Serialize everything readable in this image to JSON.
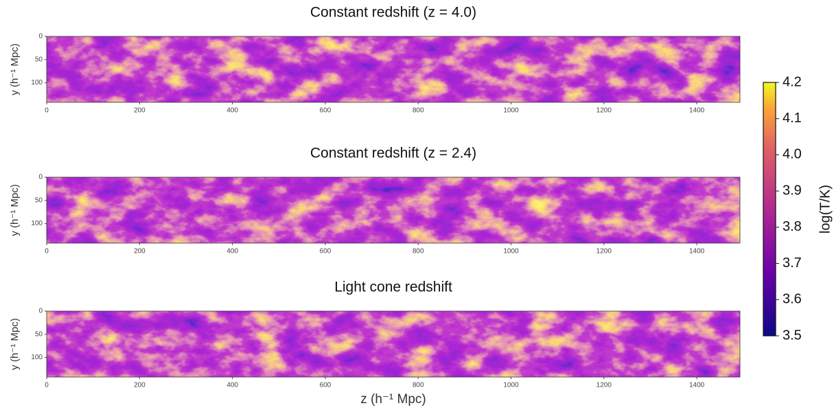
{
  "chart_data": [
    {
      "type": "image",
      "title": "Constant redshift (z = 4.0)",
      "ylabel": "y (h⁻¹ Mpc)",
      "xlim": [
        0,
        1493
      ],
      "xticks": [
        0,
        200,
        400,
        600,
        800,
        1000,
        1200,
        1400
      ],
      "ylim": [
        142,
        0
      ],
      "yticks": [
        0,
        50,
        100
      ],
      "colormap": "plasma"
    },
    {
      "type": "image",
      "title": "Constant redshift (z = 2.4)",
      "ylabel": "y (h⁻¹ Mpc)",
      "xlim": [
        0,
        1493
      ],
      "xticks": [
        0,
        200,
        400,
        600,
        800,
        1000,
        1200,
        1400
      ],
      "ylim": [
        142,
        0
      ],
      "yticks": [
        0,
        50,
        100
      ],
      "colormap": "plasma"
    },
    {
      "type": "image",
      "title": "Light cone redshift",
      "ylabel": "y (h⁻¹ Mpc)",
      "xlabel": "z (h⁻¹ Mpc)",
      "xlim": [
        0,
        1493
      ],
      "xticks": [
        0,
        200,
        400,
        600,
        800,
        1000,
        1200,
        1400
      ],
      "ylim": [
        142,
        0
      ],
      "yticks": [
        0,
        50,
        100
      ],
      "colormap": "plasma"
    },
    {
      "type": "colorbar",
      "ylabel": "log(T/K)",
      "colormap": "plasma",
      "ylim": [
        3.5,
        4.2
      ],
      "yticks": [
        3.5,
        3.6,
        3.7,
        3.8,
        3.9,
        {
          "value": 4,
          "label": "4.0"
        },
        4.1,
        4.2
      ]
    }
  ]
}
